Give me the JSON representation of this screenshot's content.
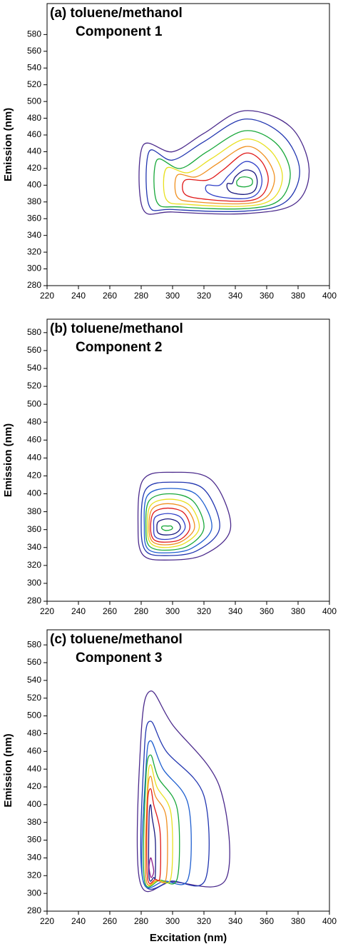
{
  "chart_data": [
    {
      "type": "contour",
      "title": "(a) toluene/methanol",
      "subtitle": "Component 1",
      "y_label": "Emission (nm)",
      "xlim": [
        220,
        400
      ],
      "xticks": [
        220,
        240,
        260,
        280,
        300,
        320,
        340,
        360,
        380,
        400
      ],
      "ylim": [
        280,
        617
      ],
      "yticks": [
        280,
        300,
        320,
        340,
        360,
        380,
        400,
        420,
        440,
        460,
        480,
        500,
        520,
        540,
        560,
        580
      ],
      "contours": [
        {
          "color": "#4b2a8c",
          "x": [
            346,
            375,
            387,
            378,
            346,
            300,
            281,
            281,
            300,
            320
          ],
          "y": [
            489,
            470,
            420,
            378,
            366,
            368,
            372,
            447,
            440,
            462
          ]
        },
        {
          "color": "#2236b0",
          "x": [
            346,
            370,
            381,
            372,
            346,
            300,
            285,
            285,
            300,
            320
          ],
          "y": [
            479,
            460,
            418,
            380,
            369,
            371,
            376,
            440,
            430,
            452
          ]
        },
        {
          "color": "#18a83a",
          "x": [
            346,
            366,
            375,
            368,
            346,
            305,
            290,
            290,
            305,
            322
          ],
          "y": [
            465,
            450,
            415,
            382,
            372,
            374,
            380,
            430,
            420,
            440
          ]
        },
        {
          "color": "#e8e020",
          "x": [
            346,
            362,
            370,
            364,
            346,
            310,
            296,
            296,
            310,
            325
          ],
          "y": [
            455,
            442,
            412,
            384,
            375,
            377,
            383,
            420,
            415,
            432
          ]
        },
        {
          "color": "#f09020",
          "x": [
            346,
            358,
            365,
            360,
            346,
            315,
            303,
            303,
            315,
            328
          ],
          "y": [
            446,
            436,
            410,
            386,
            378,
            380,
            386,
            412,
            410,
            425
          ]
        },
        {
          "color": "#e01818",
          "x": [
            346,
            356,
            361,
            357,
            346,
            322,
            308,
            308,
            322,
            332
          ],
          "y": [
            438,
            430,
            408,
            388,
            381,
            383,
            389,
            406,
            406,
            418
          ]
        },
        {
          "color": "#3040c8",
          "x": [
            346,
            354,
            357,
            354,
            346,
            330,
            322,
            322,
            330,
            336
          ],
          "y": [
            428,
            422,
            405,
            390,
            384,
            386,
            392,
            400,
            400,
            412
          ]
        },
        {
          "color": "#1a1a80",
          "x": [
            346,
            352,
            354,
            352,
            346,
            338,
            335,
            335,
            338,
            340
          ],
          "y": [
            418,
            415,
            404,
            393,
            389,
            391,
            396,
            402,
            402,
            410
          ]
        },
        {
          "color": "#18a83a",
          "x": [
            346,
            350,
            351,
            350,
            346,
            342,
            341,
            341,
            342,
            343
          ],
          "y": [
            410,
            408,
            404,
            400,
            398,
            399,
            401,
            405,
            407,
            409
          ]
        }
      ]
    },
    {
      "type": "contour",
      "title": "(b) toluene/methanol",
      "subtitle": "Component 2",
      "y_label": "Emission (nm)",
      "xlim": [
        220,
        400
      ],
      "xticks": [
        220,
        240,
        260,
        280,
        300,
        320,
        340,
        360,
        380,
        400
      ],
      "ylim": [
        280,
        595
      ],
      "yticks": [
        280,
        300,
        320,
        340,
        360,
        380,
        400,
        420,
        440,
        460,
        480,
        500,
        520,
        540,
        560,
        580
      ],
      "contours": [
        {
          "color": "#4b2a8c",
          "x": [
            300,
            325,
            337,
            320,
            295,
            281,
            278,
            281
          ],
          "y": [
            424,
            415,
            362,
            332,
            326,
            332,
            362,
            415
          ]
        },
        {
          "color": "#2236b0",
          "x": [
            300,
            320,
            330,
            315,
            295,
            283,
            280,
            283
          ],
          "y": [
            413,
            405,
            362,
            336,
            331,
            336,
            362,
            405
          ]
        },
        {
          "color": "#1f5fd0",
          "x": [
            299,
            316,
            325,
            312,
            295,
            284,
            282,
            284
          ],
          "y": [
            406,
            398,
            362,
            339,
            334,
            339,
            362,
            398
          ]
        },
        {
          "color": "#18a83a",
          "x": [
            298,
            313,
            320,
            310,
            295,
            285,
            283,
            285
          ],
          "y": [
            400,
            392,
            362,
            342,
            337,
            342,
            362,
            392
          ]
        },
        {
          "color": "#e8e020",
          "x": [
            298,
            311,
            317,
            308,
            295,
            286,
            284,
            286
          ],
          "y": [
            394,
            387,
            362,
            345,
            340,
            345,
            362,
            387
          ]
        },
        {
          "color": "#f09020",
          "x": [
            297,
            309,
            314,
            306,
            295,
            287,
            285,
            287
          ],
          "y": [
            389,
            383,
            362,
            347,
            343,
            347,
            362,
            383
          ]
        },
        {
          "color": "#e01818",
          "x": [
            297,
            307,
            311,
            305,
            295,
            288,
            286,
            288
          ],
          "y": [
            384,
            379,
            362,
            349,
            346,
            349,
            362,
            379
          ]
        },
        {
          "color": "#3040c8",
          "x": [
            297,
            305,
            308,
            303,
            295,
            289,
            288,
            289
          ],
          "y": [
            378,
            374,
            362,
            352,
            349,
            352,
            362,
            374
          ]
        },
        {
          "color": "#1a1a80",
          "x": [
            297,
            303,
            305,
            302,
            296,
            291,
            290,
            291
          ],
          "y": [
            372,
            369,
            362,
            356,
            354,
            356,
            362,
            369
          ]
        },
        {
          "color": "#18a83a",
          "x": [
            297,
            299,
            300,
            299,
            296,
            294,
            293,
            294
          ],
          "y": [
            364,
            364,
            362,
            360,
            359,
            360,
            362,
            364
          ]
        }
      ]
    },
    {
      "type": "contour",
      "title": "(c) toluene/methanol",
      "subtitle": "Component 3",
      "y_label": "Emission (nm)",
      "x_label": "Excitation (nm)",
      "xlim": [
        220,
        400
      ],
      "xticks": [
        220,
        240,
        260,
        280,
        300,
        320,
        340,
        360,
        380,
        400
      ],
      "ylim": [
        280,
        597
      ],
      "yticks": [
        280,
        300,
        320,
        340,
        360,
        380,
        400,
        420,
        440,
        460,
        480,
        500,
        520,
        540,
        560,
        580
      ],
      "contours": [
        {
          "color": "#4b2a8c",
          "x": [
            286,
            300,
            330,
            334,
            300,
            279,
            280
          ],
          "y": [
            528,
            490,
            420,
            316,
            313,
            315,
            480
          ]
        },
        {
          "color": "#2236b0",
          "x": [
            286,
            296,
            320,
            321,
            300,
            281,
            282
          ],
          "y": [
            494,
            460,
            410,
            316,
            314,
            316,
            460
          ]
        },
        {
          "color": "#1f5fd0",
          "x": [
            286,
            294,
            310,
            310,
            295,
            281,
            283
          ],
          "y": [
            472,
            440,
            400,
            317,
            314,
            316,
            440
          ]
        },
        {
          "color": "#18a83a",
          "x": [
            286,
            291,
            303,
            303,
            292,
            282,
            283
          ],
          "y": [
            456,
            430,
            395,
            317,
            315,
            316,
            430
          ]
        },
        {
          "color": "#e8e020",
          "x": [
            286,
            290,
            299,
            299,
            291,
            283,
            284
          ],
          "y": [
            445,
            420,
            390,
            318,
            315,
            317,
            420
          ]
        },
        {
          "color": "#f09020",
          "x": [
            286,
            289,
            296,
            296,
            290,
            283,
            284
          ],
          "y": [
            432,
            410,
            385,
            318,
            315,
            317,
            410
          ]
        },
        {
          "color": "#e01818",
          "x": [
            286,
            288,
            292,
            292,
            289,
            284,
            284
          ],
          "y": [
            418,
            400,
            370,
            319,
            316,
            318,
            400
          ]
        },
        {
          "color": "#1a1a80",
          "x": [
            286,
            287,
            289,
            289,
            288,
            285,
            285
          ],
          "y": [
            400,
            385,
            360,
            320,
            318,
            319,
            385
          ]
        },
        {
          "color": "#8b1a8b",
          "x": [
            286,
            287,
            288,
            287,
            286,
            285
          ],
          "y": [
            340,
            335,
            325,
            319,
            319,
            330
          ]
        }
      ]
    }
  ]
}
